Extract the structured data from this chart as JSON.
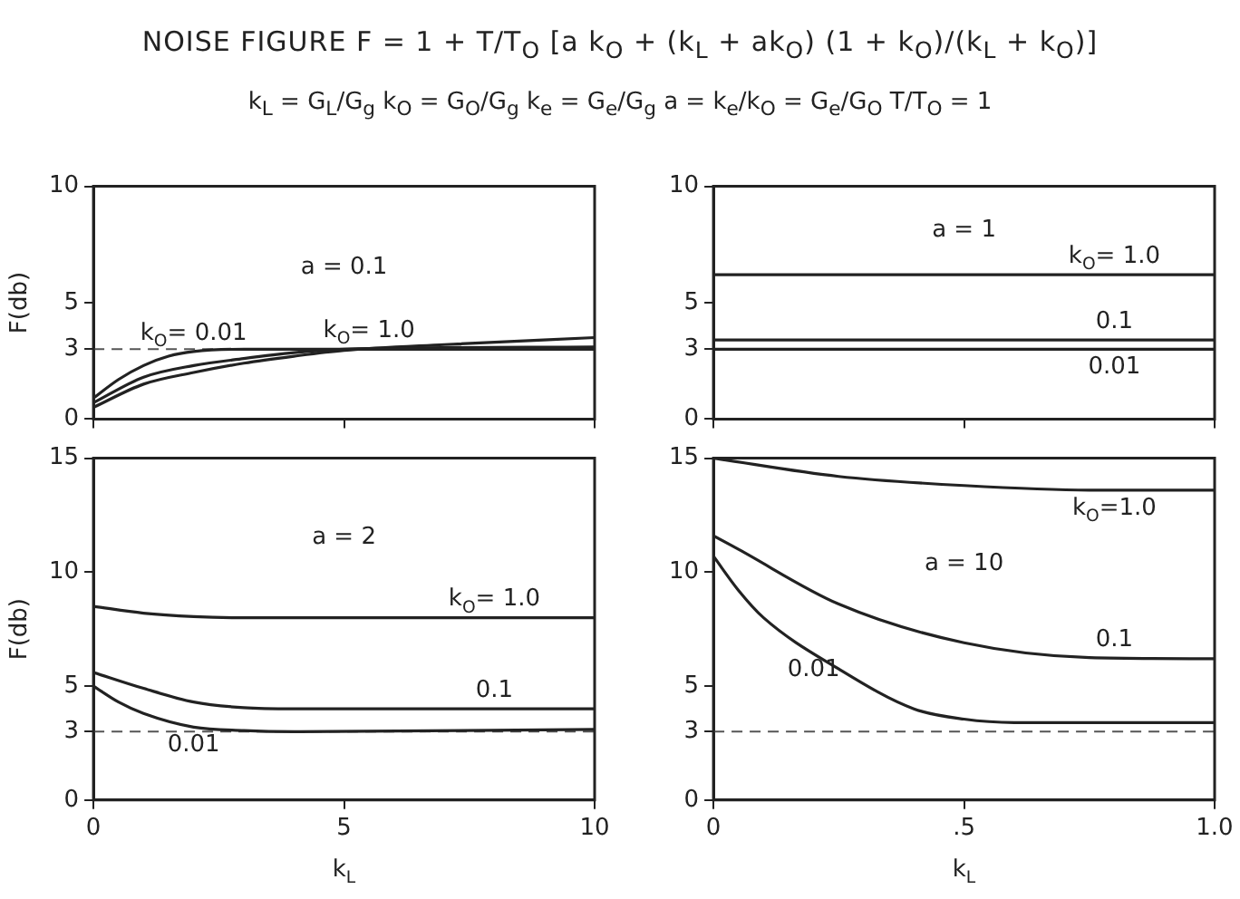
{
  "chart_data": [
    {
      "type": "line",
      "title": "NOISE FIGURE   F = 1 + T/T$_{O}$ [a k$_{O}$ + (k$_{L}$ + ak$_{O}$) (1 + k$_{O}$)/(k$_{L}$ + k$_{O}$)]",
      "subtitle": "k$_{L}$ = G$_{L}$/G$_{g}$      k$_{O}$ = G$_{O}$/G$_{g}$      k$_{e}$ = G$_{e}$/G$_{g}$      a = k$_{e}$/k$_{O}$ = G$_{e}$/G$_{O}$      T/T$_{O}$ = 1",
      "ylabel": "F(db)",
      "marker": "none",
      "xlim": [
        0,
        10
      ],
      "xticks": [
        0,
        5,
        10
      ],
      "ylim": [
        0,
        10
      ],
      "yticks": [
        0,
        3,
        5,
        10
      ],
      "tick_labels": "y",
      "series": [
        {
          "name": "k$_{O}$= 0.01",
          "color": "#222222",
          "x": [
            0,
            0.5,
            1,
            1.5,
            2,
            3,
            5,
            10
          ],
          "values": [
            0.9,
            1.7,
            2.3,
            2.7,
            2.9,
            3.0,
            3.0,
            3.0
          ]
        },
        {
          "color": "#222222",
          "x": [
            0,
            1,
            2,
            3,
            4,
            5,
            10
          ],
          "values": [
            0.7,
            1.8,
            2.3,
            2.6,
            2.85,
            3.0,
            3.1
          ]
        },
        {
          "name": "k$_{O}$= 1.0",
          "color": "#222222",
          "x": [
            0,
            1,
            2,
            3,
            4,
            5,
            7,
            10
          ],
          "values": [
            0.5,
            1.5,
            2.0,
            2.4,
            2.7,
            2.95,
            3.2,
            3.5
          ]
        }
      ],
      "ref_lines": [
        {
          "axis": "y",
          "value": 3,
          "line_style": "dashed"
        }
      ],
      "annotations": [
        "a = 0.1"
      ]
    },
    {
      "type": "line",
      "marker": "none",
      "xlim": [
        0,
        1
      ],
      "xticks": [
        0,
        0.5,
        1
      ],
      "ylim": [
        0,
        10
      ],
      "yticks": [
        0,
        3,
        5,
        10
      ],
      "tick_labels": "y",
      "series": [
        {
          "name": "k$_{O}$= 1.0",
          "color": "#222222",
          "x": [
            0,
            1
          ],
          "values": [
            6.2,
            6.2
          ]
        },
        {
          "name": "0.1",
          "color": "#222222",
          "x": [
            0,
            1
          ],
          "values": [
            3.4,
            3.4
          ]
        },
        {
          "name": "0.01",
          "color": "#222222",
          "x": [
            0,
            1
          ],
          "values": [
            3.0,
            3.0
          ]
        }
      ],
      "annotations": [
        "a = 1"
      ]
    },
    {
      "type": "line",
      "xlabel": "k$_{L}$",
      "ylabel": "F(db)",
      "marker": "none",
      "xlim": [
        0,
        10
      ],
      "xticks": [
        0,
        5,
        10
      ],
      "ylim": [
        0,
        15
      ],
      "yticks": [
        0,
        3,
        5,
        10,
        15
      ],
      "series": [
        {
          "name": "k$_{O}$= 1.0",
          "color": "#222222",
          "x": [
            0,
            1,
            2,
            3,
            10
          ],
          "values": [
            8.5,
            8.2,
            8.05,
            8.0,
            8.0
          ]
        },
        {
          "name": "0.1",
          "color": "#222222",
          "x": [
            0,
            1,
            2,
            3,
            4,
            10
          ],
          "values": [
            5.6,
            4.9,
            4.3,
            4.05,
            4.0,
            4.0
          ]
        },
        {
          "name": "0.01",
          "color": "#222222",
          "x": [
            0,
            0.5,
            1,
            2,
            3,
            4,
            10
          ],
          "values": [
            5.0,
            4.3,
            3.8,
            3.2,
            3.05,
            3.0,
            3.1
          ]
        }
      ],
      "ref_lines": [
        {
          "axis": "y",
          "value": 3,
          "line_style": "dashed"
        }
      ],
      "annotations": [
        "a = 2"
      ]
    },
    {
      "type": "line",
      "xlabel": "k$_{L}$",
      "marker": "none",
      "xlim": [
        0,
        1
      ],
      "xticks": [
        0,
        {
          "value": 0.5,
          "label": ".5"
        },
        {
          "value": 1,
          "label": "1.0"
        }
      ],
      "ylim": [
        0,
        15
      ],
      "yticks": [
        0,
        3,
        5,
        10,
        15
      ],
      "series": [
        {
          "name": "k$_{O}$=1.0",
          "color": "#222222",
          "x": [
            0,
            0.25,
            0.5,
            0.75,
            1
          ],
          "values": [
            15,
            14.2,
            13.8,
            13.6,
            13.6
          ]
        },
        {
          "name": "0.1",
          "color": "#222222",
          "x": [
            0,
            0.05,
            0.25,
            0.5,
            0.75,
            1
          ],
          "values": [
            11.6,
            11.0,
            8.6,
            6.9,
            6.25,
            6.2
          ]
        },
        {
          "name": "0.01",
          "color": "#222222",
          "x": [
            0,
            0.05,
            0.1,
            0.25,
            0.4,
            0.5,
            0.6,
            1
          ],
          "values": [
            10.7,
            9.2,
            8.0,
            5.75,
            4.0,
            3.55,
            3.4,
            3.4
          ]
        }
      ],
      "ref_lines": [
        {
          "axis": "y",
          "value": 3,
          "line_style": "dashed"
        }
      ],
      "annotations": [
        "a = 10"
      ]
    }
  ]
}
